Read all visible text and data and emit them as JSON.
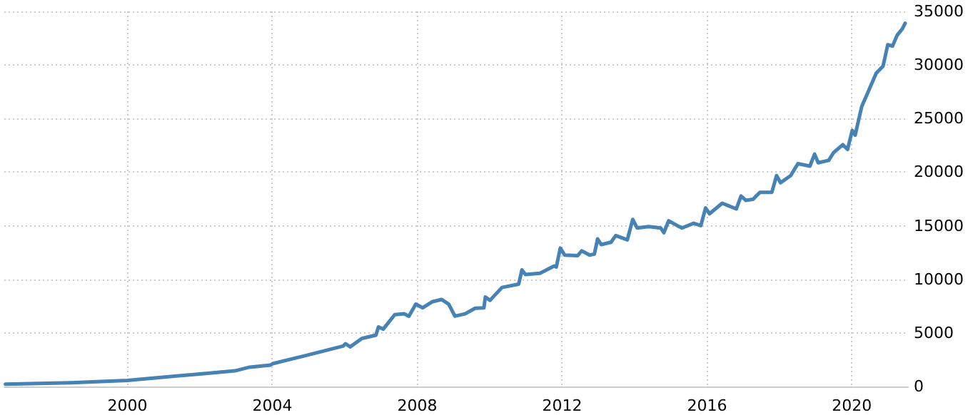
{
  "chart_data": {
    "type": "line",
    "grid": true,
    "marker": "none",
    "line_style": "solid",
    "xlim": [
      1996.6,
      2021.55
    ],
    "xticks": [
      2000,
      2004,
      2008,
      2012,
      2016,
      2020
    ],
    "ylim": [
      0,
      35000
    ],
    "yticks": [
      0,
      5000,
      10000,
      15000,
      20000,
      25000,
      30000,
      35000
    ],
    "series": [
      {
        "color": "#4682b4",
        "x": [
          1996.63,
          1998.45,
          2000.0,
          2001.94,
          2002.97,
          2003.37,
          2003.95,
          2004.01,
          2004.92,
          2005.95,
          2006.02,
          2006.15,
          2006.47,
          2006.86,
          2006.93,
          2007.06,
          2007.38,
          2007.64,
          2007.77,
          2007.96,
          2008.15,
          2008.41,
          2008.67,
          2008.87,
          2009.04,
          2009.32,
          2009.6,
          2009.84,
          2009.88,
          2010.01,
          2010.34,
          2010.8,
          2010.89,
          2010.99,
          2011.39,
          2011.78,
          2011.84,
          2011.95,
          2012.07,
          2012.43,
          2012.54,
          2012.76,
          2012.89,
          2012.98,
          2013.08,
          2013.35,
          2013.48,
          2013.8,
          2013.95,
          2014.07,
          2014.39,
          2014.72,
          2014.81,
          2014.94,
          2015.18,
          2015.31,
          2015.63,
          2015.83,
          2015.96,
          2016.07,
          2016.42,
          2016.81,
          2016.94,
          2017.07,
          2017.27,
          2017.46,
          2017.79,
          2017.92,
          2018.03,
          2018.31,
          2018.51,
          2018.84,
          2018.97,
          2019.07,
          2019.36,
          2019.49,
          2019.75,
          2019.88,
          2020.01,
          2020.09,
          2020.27,
          2020.47,
          2020.67,
          2020.86,
          2020.99,
          2021.12,
          2021.25,
          2021.39,
          2021.47
        ],
        "values": [
          220,
          350,
          570,
          1150,
          1460,
          1800,
          2000,
          2130,
          2890,
          3770,
          3990,
          3700,
          4480,
          4790,
          5560,
          5350,
          6700,
          6780,
          6560,
          7680,
          7340,
          7900,
          8120,
          7680,
          6560,
          6780,
          7300,
          7330,
          8350,
          8040,
          9240,
          9550,
          10880,
          10440,
          10570,
          11240,
          11150,
          12920,
          12260,
          12210,
          12660,
          12260,
          12350,
          13770,
          13240,
          13460,
          14080,
          13680,
          15590,
          14790,
          14920,
          14790,
          14350,
          15460,
          15010,
          14790,
          15230,
          15010,
          16660,
          16120,
          17100,
          16570,
          17770,
          17370,
          17460,
          18120,
          18120,
          19680,
          19010,
          19680,
          20790,
          20560,
          21680,
          20880,
          21100,
          21810,
          22560,
          22120,
          23900,
          23450,
          26120,
          27670,
          29230,
          29890,
          31890,
          31760,
          32780,
          33360,
          33890
        ]
      }
    ]
  }
}
